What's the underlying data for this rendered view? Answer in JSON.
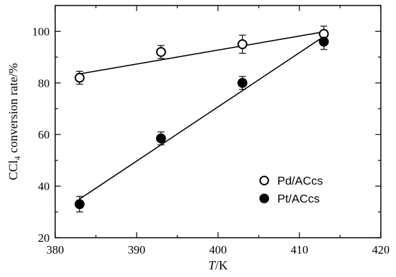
{
  "chart_data": {
    "type": "scatter",
    "xlabel_italic": "T",
    "xlabel_rest": "/K",
    "ylabel_main": "CCl",
    "ylabel_sub": "4",
    "ylabel_rest": " conversion rate/%",
    "xlim": [
      380,
      420
    ],
    "ylim": [
      20,
      110
    ],
    "xticks": [
      380,
      390,
      400,
      410,
      420
    ],
    "yticks": [
      20,
      40,
      60,
      80,
      100
    ],
    "grid": false,
    "legend_position": "lower-right",
    "series": [
      {
        "name": "Pd/ACcs",
        "marker": "open-circle",
        "x": [
          383,
          393,
          403,
          413
        ],
        "y": [
          82,
          92,
          95,
          99
        ],
        "error": [
          2.5,
          2.5,
          3.5,
          3
        ],
        "fit": {
          "x": [
            383,
            413
          ],
          "y": [
            83.5,
            99.8
          ]
        }
      },
      {
        "name": "Pt/ACcs",
        "marker": "filled-circle",
        "x": [
          383,
          393,
          403,
          413
        ],
        "y": [
          33,
          58.5,
          80,
          96
        ],
        "error": [
          3,
          2.5,
          2.5,
          3
        ],
        "fit": {
          "x": [
            383,
            413
          ],
          "y": [
            35,
            98
          ]
        }
      }
    ]
  }
}
